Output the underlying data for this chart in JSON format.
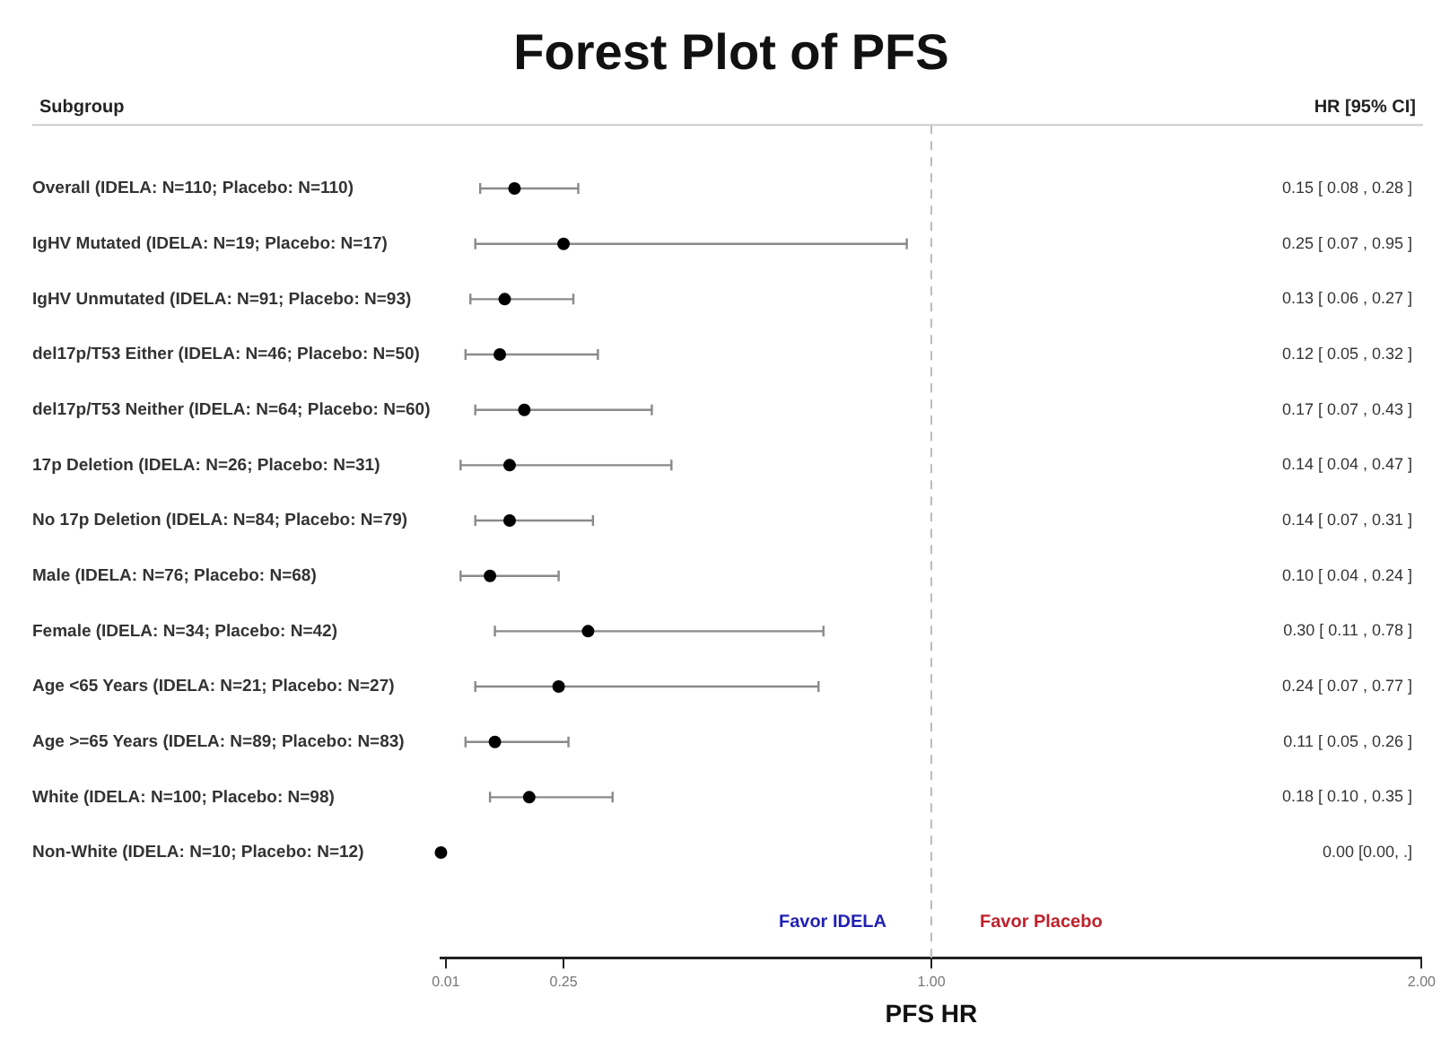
{
  "chart_data": {
    "type": "scatter",
    "orientation": "horizontal",
    "title": "Forest Plot of PFS",
    "xlabel": "PFS HR",
    "ylabel": "Subgroup",
    "categories": [
      "Overall (IDELA: N=110; Placebo: N=110)",
      "IgHV Mutated (IDELA: N=19; Placebo: N=17)",
      "IgHV Unmutated (IDELA: N=91; Placebo: N=93)",
      "del17p/T53 Either (IDELA: N=46; Placebo: N=50)",
      "del17p/T53 Neither (IDELA: N=64; Placebo: N=60)",
      "17p Deletion (IDELA: N=26; Placebo: N=31)",
      "No 17p Deletion (IDELA: N=84; Placebo: N=79)",
      "Male (IDELA: N=76; Placebo: N=68)",
      "Female (IDELA: N=34; Placebo: N=42)",
      "Age <65 Years (IDELA: N=21; Placebo: N=27)",
      "Age >=65 Years (IDELA: N=89; Placebo: N=83)",
      "White (IDELA: N=100; Placebo: N=98)",
      "Non-White (IDELA: N=10; Placebo: N=12)"
    ],
    "series": [
      {
        "color": "#000000",
        "values": [
          0.15,
          0.25,
          0.13,
          0.12,
          0.17,
          0.14,
          0.14,
          0.1,
          0.3,
          0.24,
          0.11,
          0.18,
          0.0
        ],
        "errors": [
          [
            0.08,
            0.28
          ],
          [
            0.07,
            0.95
          ],
          [
            0.06,
            0.27
          ],
          [
            0.05,
            0.32
          ],
          [
            0.07,
            0.43
          ],
          [
            0.04,
            0.47
          ],
          [
            0.07,
            0.31
          ],
          [
            0.04,
            0.24
          ],
          [
            0.11,
            0.78
          ],
          [
            0.07,
            0.77
          ],
          [
            0.05,
            0.26
          ],
          [
            0.1,
            0.35
          ],
          null
        ]
      }
    ],
    "xlim": [
      0,
      2
    ],
    "xticks": [
      {
        "value": 0.01,
        "label": "0.01"
      },
      0.25,
      {
        "value": 1,
        "label": "1.00"
      },
      {
        "value": 2,
        "label": "2.00"
      }
    ],
    "ref_lines": [
      {
        "axis": "x",
        "value": 1,
        "line_style": "dashed",
        "color": "#bbbbbb"
      }
    ],
    "annotations": [
      "HR [95% CI]",
      "Favor IDELA",
      "Favor Placebo",
      "0.15 [ 0.08 , 0.28 ]",
      "0.25 [ 0.07 , 0.95 ]",
      "0.13 [ 0.06 , 0.27 ]",
      "0.12 [ 0.05 , 0.32 ]",
      "0.17 [ 0.07 , 0.43 ]",
      "0.14 [ 0.04 , 0.47 ]",
      "0.14 [ 0.07 , 0.31 ]",
      "0.10 [ 0.04 , 0.24 ]",
      "0.30 [ 0.11 , 0.78 ]",
      "0.24 [ 0.07 , 0.77 ]",
      "0.11 [ 0.05 , 0.26 ]",
      "0.18 [ 0.10 , 0.35 ]",
      "0.00 [0.00, .]"
    ],
    "marker": "circle",
    "grid": false,
    "legend": false
  }
}
